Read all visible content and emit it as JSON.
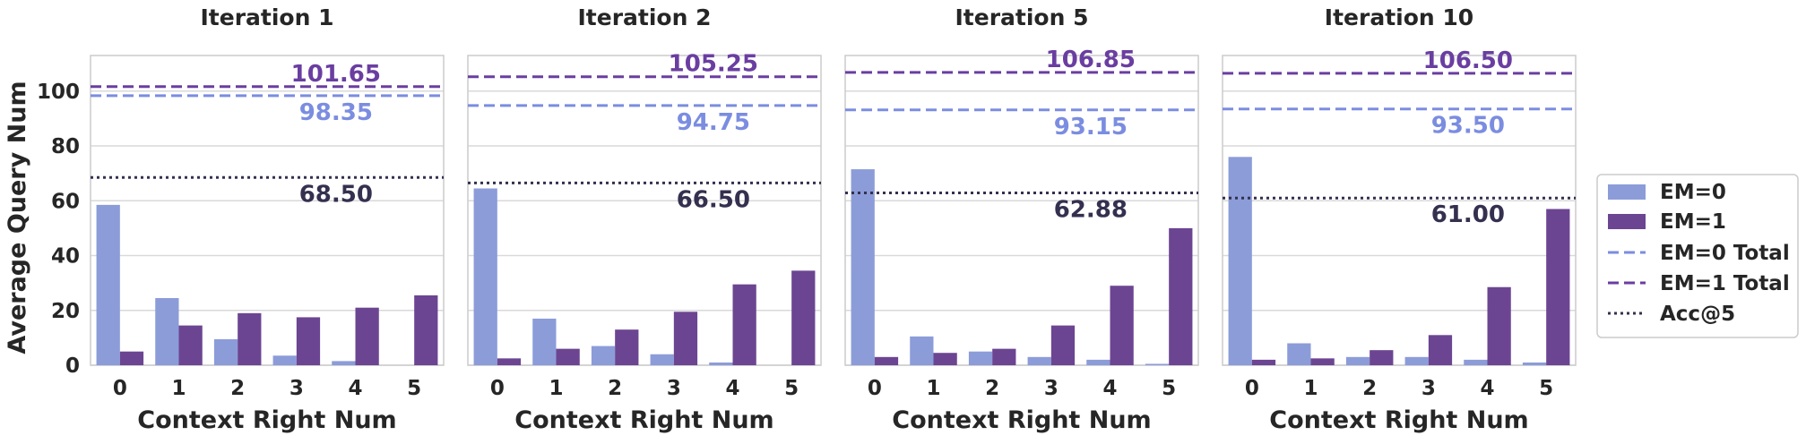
{
  "chart_data": {
    "type": "bar",
    "ylabel": "Average Query Num",
    "xlabel": "Context Right Num",
    "ylim": [
      0,
      113
    ],
    "yticks": [
      0,
      20,
      40,
      60,
      80,
      100
    ],
    "categories": [
      "0",
      "1",
      "2",
      "3",
      "4",
      "5"
    ],
    "colors": {
      "em0": "#8c9cd9",
      "em1": "#6c4592",
      "em0_line": "#7b8de0",
      "em1_line": "#6a3ea1",
      "acc_line": "#34304f",
      "em0_text": "#7b8de0",
      "em1_text": "#6a3ea1",
      "acc_text": "#34304f",
      "grid": "#d9d9d9",
      "frame": "#cccccc"
    },
    "legend": {
      "position": "right",
      "entries": [
        "EM=0",
        "EM=1",
        "EM=0 Total",
        "EM=1 Total",
        "Acc@5"
      ]
    },
    "panels": [
      {
        "title": "Iteration 1",
        "series": [
          {
            "name": "EM=0",
            "values": [
              58.5,
              24.5,
              9.5,
              3.5,
              1.5,
              0.0
            ]
          },
          {
            "name": "EM=1",
            "values": [
              5.0,
              14.5,
              19.0,
              17.5,
              21.0,
              25.5
            ]
          }
        ],
        "em0_total": 98.35,
        "em0_total_label": "98.35",
        "em1_total": 101.65,
        "em1_total_label": "101.65",
        "acc5": 68.5,
        "acc5_label": "68.50"
      },
      {
        "title": "Iteration 2",
        "series": [
          {
            "name": "EM=0",
            "values": [
              64.5,
              17.0,
              7.0,
              4.0,
              1.0,
              0.0
            ]
          },
          {
            "name": "EM=1",
            "values": [
              2.5,
              6.0,
              13.0,
              19.5,
              29.5,
              34.5
            ]
          }
        ],
        "em0_total": 94.75,
        "em0_total_label": "94.75",
        "em1_total": 105.25,
        "em1_total_label": "105.25",
        "acc5": 66.5,
        "acc5_label": "66.50"
      },
      {
        "title": "Iteration 5",
        "series": [
          {
            "name": "EM=0",
            "values": [
              71.5,
              10.5,
              5.0,
              3.0,
              2.0,
              0.5
            ]
          },
          {
            "name": "EM=1",
            "values": [
              3.0,
              4.5,
              6.0,
              14.5,
              29.0,
              50.0
            ]
          }
        ],
        "em0_total": 93.15,
        "em0_total_label": "93.15",
        "em1_total": 106.85,
        "em1_total_label": "106.85",
        "acc5": 62.88,
        "acc5_label": "62.88"
      },
      {
        "title": "Iteration 10",
        "series": [
          {
            "name": "EM=0",
            "values": [
              76.0,
              8.0,
              3.0,
              3.0,
              2.0,
              1.0
            ]
          },
          {
            "name": "EM=1",
            "values": [
              2.0,
              2.5,
              5.5,
              11.0,
              28.5,
              57.0
            ]
          }
        ],
        "em0_total": 93.5,
        "em0_total_label": "93.50",
        "em1_total": 106.5,
        "em1_total_label": "106.50",
        "acc5": 61.0,
        "acc5_label": "61.00"
      }
    ]
  }
}
